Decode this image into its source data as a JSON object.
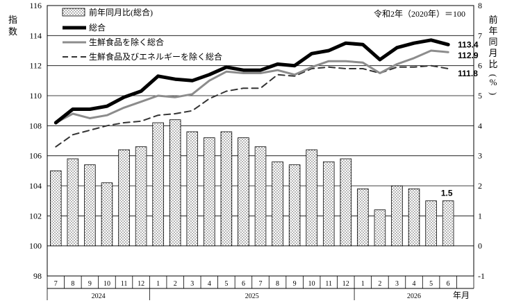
{
  "chart_data": {
    "type": "bar+line",
    "base_note": "令和2年（2020年）＝100",
    "left_axis": {
      "label": "指数",
      "min": 98,
      "max": 116,
      "ticks": [
        98,
        100,
        102,
        104,
        106,
        108,
        110,
        112,
        114,
        116
      ]
    },
    "right_axis": {
      "label": "前年同月比(%)",
      "min": -1,
      "max": 8,
      "ticks": [
        -1,
        0,
        1,
        2,
        3,
        4,
        5,
        6,
        7,
        8
      ]
    },
    "x_axis_unit": "年月",
    "months": [
      "7",
      "8",
      "9",
      "10",
      "11",
      "12",
      "1",
      "2",
      "3",
      "4",
      "5",
      "6",
      "7",
      "8",
      "9",
      "10",
      "11",
      "12",
      "1",
      "2",
      "3",
      "4",
      "5",
      "6",
      ""
    ],
    "years": [
      {
        "label": "2024",
        "start": 0,
        "span": 6
      },
      {
        "label": "2025",
        "start": 6,
        "span": 12
      },
      {
        "label": "2026",
        "start": 18,
        "span": 7
      }
    ],
    "bar_series": {
      "name": "前年同月比(総合)",
      "axis": "right",
      "values": [
        2.5,
        2.9,
        2.7,
        2.1,
        3.2,
        3.3,
        4.1,
        4.2,
        3.8,
        3.6,
        3.8,
        3.6,
        3.3,
        2.8,
        2.7,
        3.2,
        2.8,
        2.9,
        1.9,
        1.2,
        2.0,
        1.9,
        1.5,
        1.5
      ],
      "last_label": "1.5"
    },
    "line_series": [
      {
        "name": "総合",
        "style": "thick-black",
        "color": "#000000",
        "axis": "left",
        "values": [
          108.2,
          109.1,
          109.1,
          109.3,
          109.9,
          110.3,
          111.3,
          111.1,
          111.0,
          111.4,
          111.9,
          111.7,
          111.7,
          112.1,
          112.0,
          112.8,
          113.0,
          113.5,
          113.4,
          112.4,
          113.2,
          113.5,
          113.7,
          113.4
        ],
        "end_label": "113.4"
      },
      {
        "name": "生鮮食品を除く総合",
        "style": "gray",
        "color": "#8c8c8c",
        "axis": "left",
        "values": [
          108.2,
          108.8,
          108.5,
          108.7,
          109.2,
          109.6,
          110.0,
          109.9,
          110.1,
          111.0,
          111.6,
          111.5,
          111.5,
          111.7,
          111.4,
          111.9,
          112.3,
          112.3,
          112.2,
          111.5,
          112.1,
          112.5,
          113.0,
          112.9
        ],
        "end_label": "112.9"
      },
      {
        "name": "生鮮食品及びエネルギーを除く総合",
        "style": "dashed-black",
        "color": "#333333",
        "axis": "left",
        "values": [
          106.6,
          107.4,
          107.7,
          108.0,
          108.2,
          108.3,
          108.7,
          108.8,
          109.0,
          109.8,
          110.3,
          110.5,
          110.5,
          111.4,
          111.3,
          111.8,
          111.9,
          111.8,
          111.8,
          111.5,
          111.9,
          111.9,
          112.0,
          111.8
        ],
        "end_label": "111.8"
      }
    ]
  }
}
